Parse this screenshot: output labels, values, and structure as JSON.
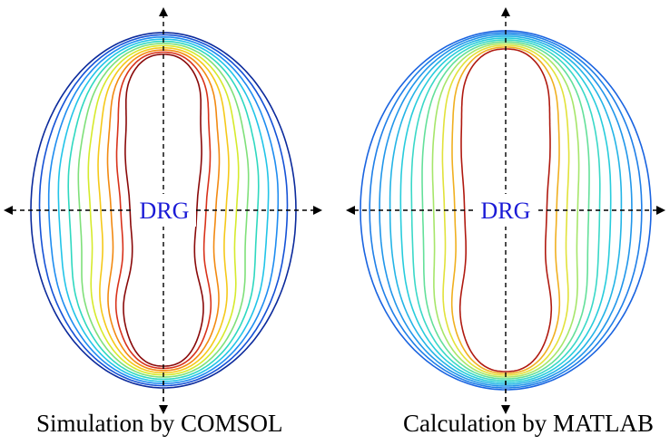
{
  "panels": [
    {
      "id": "left",
      "center_label": "DRG",
      "caption": "Simulation by COMSOL",
      "ring_count": 11,
      "palette": [
        "#0b2a9c",
        "#1552d6",
        "#1e8cf0",
        "#22c4e8",
        "#2fd8c0",
        "#7fe07a",
        "#d6ea2c",
        "#f5c91a",
        "#f28a12",
        "#d8321a",
        "#8a0a0a"
      ]
    },
    {
      "id": "right",
      "center_label": "DRG",
      "caption": "Calculation by MATLAB",
      "ring_count": 11,
      "palette": [
        "#1a64e0",
        "#1f7fe8",
        "#2196ea",
        "#24b4e6",
        "#28ccdc",
        "#3ad8c8",
        "#64e09a",
        "#a6e66a",
        "#e2e23a",
        "#f0b020",
        "#b01a10"
      ]
    }
  ],
  "colors": {
    "label": "#1a1ad6",
    "axis": "#000000",
    "background": "#ffffff"
  }
}
